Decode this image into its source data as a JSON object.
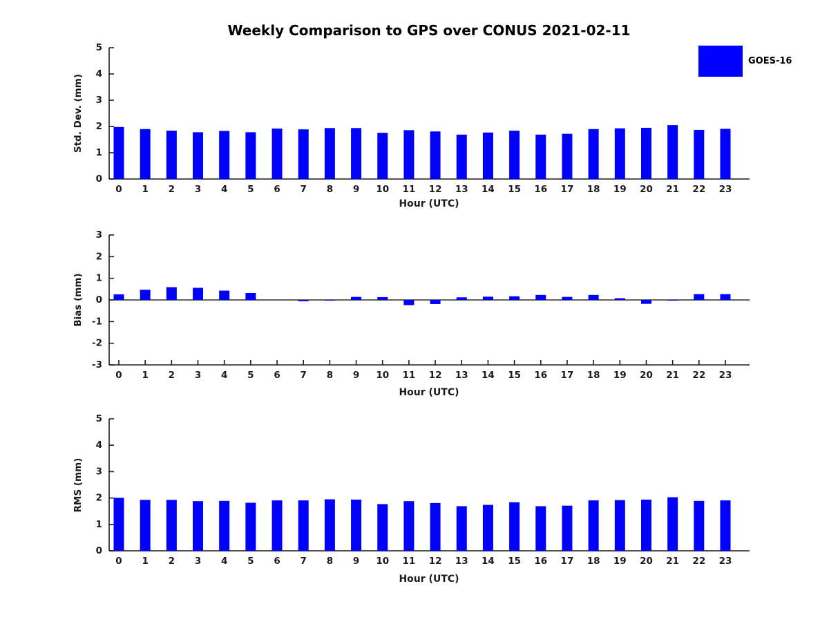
{
  "title": "Weekly Comparison to GPS over CONUS 2021-02-11",
  "legend": {
    "label": "GOES-16",
    "swatch_color": "#0000FF"
  },
  "colors": {
    "bar": "#0000FF",
    "axis": "#1a1a1a",
    "text": "#1a1a1a",
    "zero_line": "#000000"
  },
  "chart_data": [
    {
      "type": "bar",
      "name": "std_dev",
      "ylabel": "Std. Dev. (mm)",
      "xlabel": "Hour (UTC)",
      "series_name": "GOES-16",
      "categories": [
        "0",
        "1",
        "2",
        "3",
        "4",
        "5",
        "6",
        "7",
        "8",
        "9",
        "10",
        "11",
        "12",
        "13",
        "14",
        "15",
        "16",
        "17",
        "18",
        "19",
        "20",
        "21",
        "22",
        "23"
      ],
      "values": [
        1.98,
        1.9,
        1.84,
        1.78,
        1.83,
        1.78,
        1.92,
        1.89,
        1.94,
        1.94,
        1.76,
        1.86,
        1.81,
        1.69,
        1.77,
        1.84,
        1.69,
        1.72,
        1.9,
        1.93,
        1.95,
        2.05,
        1.87,
        1.91
      ],
      "ylim": [
        0,
        5
      ],
      "yticks": [
        0,
        1,
        2,
        3,
        4,
        5
      ],
      "grid": false,
      "legend_position": "upper-right-outside"
    },
    {
      "type": "bar",
      "name": "bias",
      "ylabel": "Bias (mm)",
      "xlabel": "Hour (UTC)",
      "series_name": "GOES-16",
      "categories": [
        "0",
        "1",
        "2",
        "3",
        "4",
        "5",
        "6",
        "7",
        "8",
        "9",
        "10",
        "11",
        "12",
        "13",
        "14",
        "15",
        "16",
        "17",
        "18",
        "19",
        "20",
        "21",
        "22",
        "23"
      ],
      "values": [
        0.26,
        0.47,
        0.59,
        0.56,
        0.43,
        0.32,
        0.0,
        -0.06,
        -0.02,
        0.14,
        0.13,
        -0.24,
        -0.19,
        0.12,
        0.15,
        0.17,
        0.23,
        0.14,
        0.23,
        0.08,
        -0.18,
        -0.02,
        0.27,
        0.27
      ],
      "ylim": [
        -3,
        3
      ],
      "yticks": [
        -3,
        -2,
        -1,
        0,
        1,
        2,
        3
      ],
      "grid": false
    },
    {
      "type": "bar",
      "name": "rms",
      "ylabel": "RMS (mm)",
      "xlabel": "Hour (UTC)",
      "series_name": "GOES-16",
      "categories": [
        "0",
        "1",
        "2",
        "3",
        "4",
        "5",
        "6",
        "7",
        "8",
        "9",
        "10",
        "11",
        "12",
        "13",
        "14",
        "15",
        "16",
        "17",
        "18",
        "19",
        "20",
        "21",
        "22",
        "23"
      ],
      "values": [
        2.01,
        1.93,
        1.93,
        1.88,
        1.89,
        1.82,
        1.91,
        1.91,
        1.95,
        1.94,
        1.77,
        1.88,
        1.81,
        1.69,
        1.74,
        1.84,
        1.69,
        1.71,
        1.91,
        1.92,
        1.94,
        2.03,
        1.89,
        1.91
      ],
      "ylim": [
        0,
        5
      ],
      "yticks": [
        0,
        1,
        2,
        3,
        4,
        5
      ],
      "grid": false
    }
  ]
}
